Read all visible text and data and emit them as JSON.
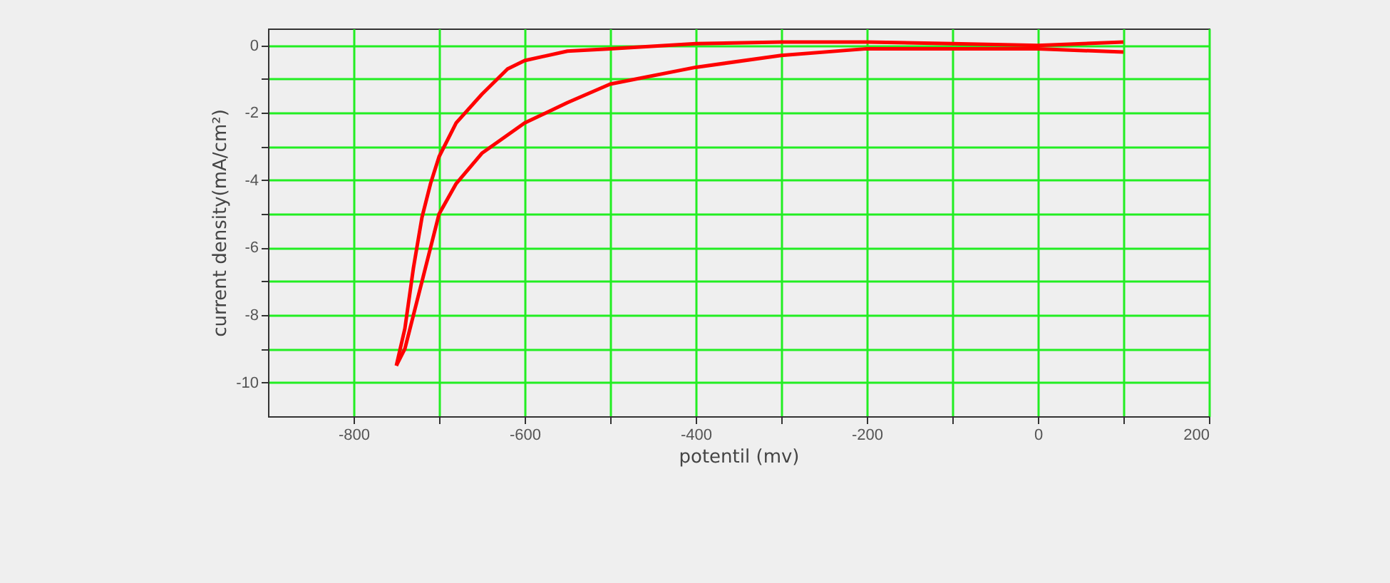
{
  "chart_data": {
    "type": "line",
    "xlabel": "potentil (mv)",
    "ylabel": "current density(mA/cm²)",
    "xlim": [
      -900,
      200
    ],
    "ylim": [
      -11,
      0.5
    ],
    "xticks": [
      -800,
      {
        "value": -700,
        "label": null
      },
      -600,
      {
        "value": -500,
        "label": null
      },
      -400,
      {
        "value": -300,
        "label": null
      },
      -200,
      {
        "value": -100,
        "label": null
      },
      0,
      {
        "value": 100,
        "label": null
      },
      200
    ],
    "yticks": [
      -10,
      {
        "value": -9,
        "label": null
      },
      -8,
      {
        "value": -7,
        "label": null
      },
      -6,
      {
        "value": -5,
        "label": null
      },
      -4,
      {
        "value": -3,
        "label": null
      },
      -2,
      {
        "value": -1,
        "label": null
      },
      0
    ],
    "grid": true,
    "marker": "none",
    "line_style": "solid",
    "series": [
      {
        "color": "#ff0000",
        "x": [
          -750,
          -740,
          -730,
          -720,
          -710,
          -700,
          -680,
          -650,
          -620,
          -600,
          -550,
          -500,
          -400,
          -300,
          -200,
          -100,
          0,
          100
        ],
        "values": [
          -9.5,
          -8.4,
          -6.6,
          -5.1,
          -4.1,
          -3.3,
          -2.3,
          -1.45,
          -0.7,
          -0.45,
          -0.17,
          -0.1,
          0.05,
          0.1,
          0.1,
          0.05,
          0,
          0.1
        ]
      },
      {
        "color": "#ff0000",
        "x": [
          100,
          0,
          -100,
          -200,
          -300,
          -400,
          -500,
          -550,
          -600,
          -650,
          -680,
          -700,
          -720,
          -740,
          -750
        ],
        "values": [
          -0.2,
          -0.1,
          -0.1,
          -0.1,
          -0.3,
          -0.65,
          -1.15,
          -1.7,
          -2.3,
          -3.2,
          -4.1,
          -5,
          -7,
          -9,
          -9.5
        ]
      }
    ]
  }
}
